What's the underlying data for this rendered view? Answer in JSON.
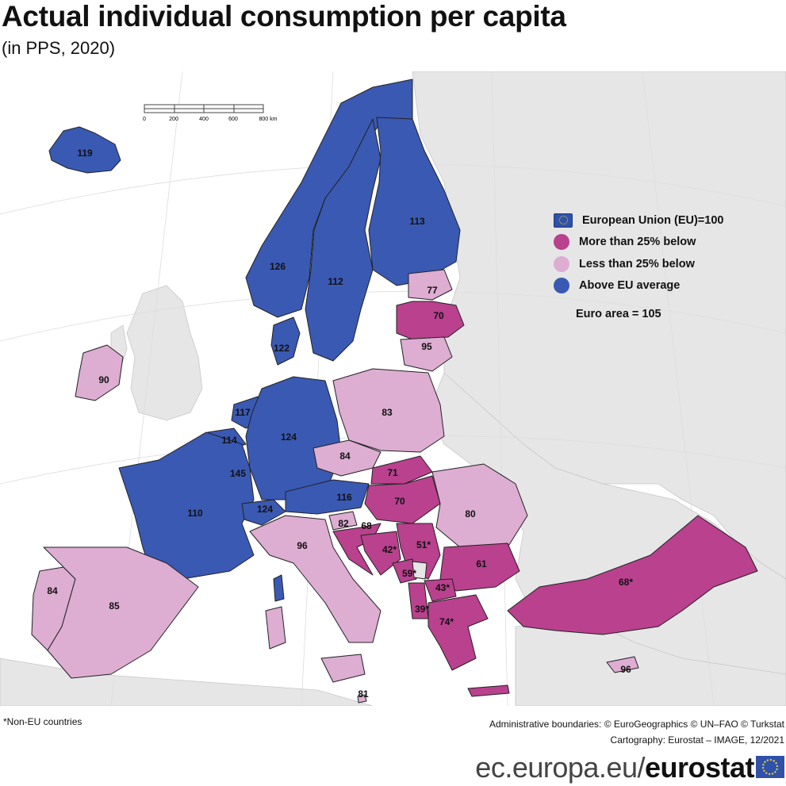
{
  "title": "Actual individual consumption per capita",
  "subtitle": "(in PPS, 2020)",
  "colors": {
    "above_eu": "#3a59b3",
    "less_than_25_below": "#ddadd2",
    "more_than_25_below": "#b9418e",
    "non_data": "#e6e6e6",
    "sea": "#ffffff"
  },
  "legend": {
    "eu": "European Union (EU)=100",
    "more": "More than 25% below",
    "less": "Less than 25% below",
    "above": "Above EU average"
  },
  "euro_area": "Euro area = 105",
  "scale_bar": {
    "ticks": [
      "0",
      "200",
      "400",
      "600",
      "800 km"
    ]
  },
  "countries": [
    {
      "value": "119",
      "category": "above_eu"
    },
    {
      "value": "126",
      "category": "above_eu"
    },
    {
      "value": "112",
      "category": "above_eu"
    },
    {
      "value": "113",
      "category": "above_eu"
    },
    {
      "value": "77",
      "category": "less_than_25_below"
    },
    {
      "value": "70",
      "category": "more_than_25_below"
    },
    {
      "value": "95",
      "category": "less_than_25_below"
    },
    {
      "value": "122",
      "category": "above_eu"
    },
    {
      "value": "90",
      "category": "less_than_25_below"
    },
    {
      "value": "117",
      "category": "above_eu"
    },
    {
      "value": "114",
      "category": "above_eu"
    },
    {
      "value": "145",
      "category": "above_eu"
    },
    {
      "value": "124",
      "category": "above_eu"
    },
    {
      "value": "83",
      "category": "less_than_25_below"
    },
    {
      "value": "84",
      "category": "less_than_25_below"
    },
    {
      "value": "110",
      "category": "above_eu"
    },
    {
      "value": "124",
      "category": "above_eu"
    },
    {
      "value": "116",
      "category": "above_eu"
    },
    {
      "value": "71",
      "category": "more_than_25_below"
    },
    {
      "value": "70",
      "category": "more_than_25_below"
    },
    {
      "value": "80",
      "category": "less_than_25_below"
    },
    {
      "value": "82",
      "category": "less_than_25_below"
    },
    {
      "value": "68",
      "category": "more_than_25_below"
    },
    {
      "value": "96",
      "category": "less_than_25_below"
    },
    {
      "value": "42*",
      "category": "more_than_25_below"
    },
    {
      "value": "51*",
      "category": "more_than_25_below"
    },
    {
      "value": "59*",
      "category": "more_than_25_below"
    },
    {
      "value": "61",
      "category": "more_than_25_below"
    },
    {
      "value": "43*",
      "category": "more_than_25_below"
    },
    {
      "value": "39*",
      "category": "more_than_25_below"
    },
    {
      "value": "74*",
      "category": "more_than_25_below"
    },
    {
      "value": "68*",
      "category": "more_than_25_below"
    },
    {
      "value": "84",
      "category": "less_than_25_below"
    },
    {
      "value": "85",
      "category": "less_than_25_below"
    },
    {
      "value": "81",
      "category": "less_than_25_below"
    },
    {
      "value": "96",
      "category": "less_than_25_below"
    }
  ],
  "notes": {
    "non_eu": "*Non-EU countries",
    "boundaries": "Administrative boundaries: © EuroGeographics © UN–FAO © Turkstat",
    "cartography": "Cartography: Eurostat – IMAGE, 12/2021"
  },
  "brand": {
    "domain": "ec.europa.eu/",
    "name": "eurostat"
  }
}
